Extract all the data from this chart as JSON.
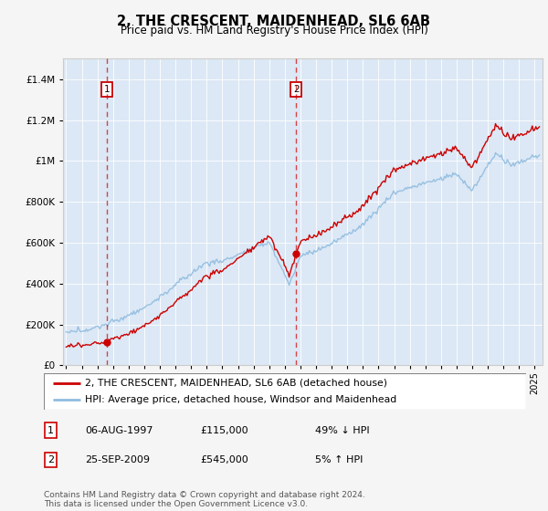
{
  "title": "2, THE CRESCENT, MAIDENHEAD, SL6 6AB",
  "subtitle": "Price paid vs. HM Land Registry's House Price Index (HPI)",
  "red_line_label": "2, THE CRESCENT, MAIDENHEAD, SL6 6AB (detached house)",
  "blue_line_label": "HPI: Average price, detached house, Windsor and Maidenhead",
  "transaction1_date": "06-AUG-1997",
  "transaction1_price": "£115,000",
  "transaction1_hpi": "49% ↓ HPI",
  "transaction2_date": "25-SEP-2009",
  "transaction2_price": "£545,000",
  "transaction2_hpi": "5% ↑ HPI",
  "footer": "Contains HM Land Registry data © Crown copyright and database right 2024.\nThis data is licensed under the Open Government Licence v3.0.",
  "fig_bg_color": "#f5f5f5",
  "plot_bg_color": "#dce8f5",
  "red_color": "#cc0000",
  "blue_color": "#90bce0",
  "ylim": [
    0,
    1500000
  ],
  "xmin": 1994.8,
  "xmax": 2025.5,
  "t1_year": 1997.6,
  "t1_price": 115000,
  "t2_year": 2009.73,
  "t2_price": 545000
}
